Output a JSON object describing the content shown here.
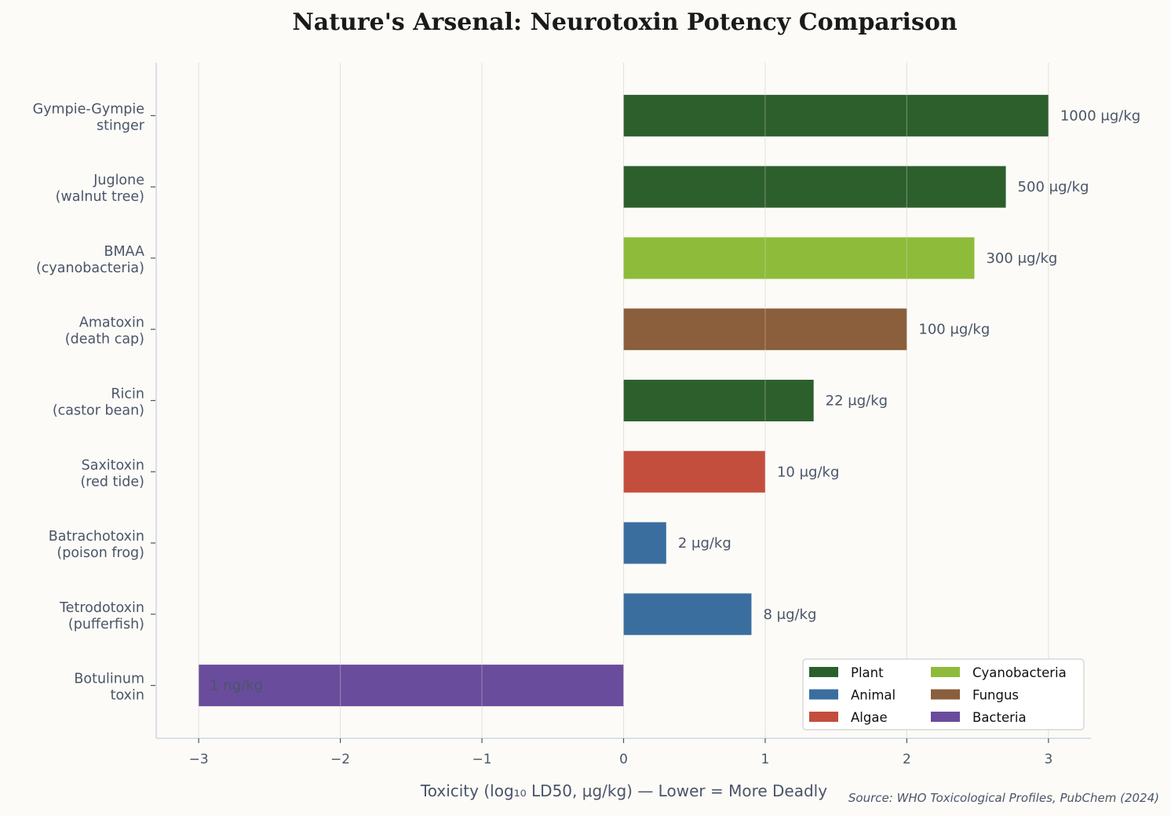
{
  "chart_data": {
    "type": "bar",
    "orientation": "horizontal",
    "title": "Nature's Arsenal: Neurotoxin Potency Comparison",
    "xlabel": "Toxicity (log₁₀ LD50, μg/kg) — Lower = More Deadly",
    "ylabel": "",
    "xlim": [
      -3.3,
      3.3
    ],
    "xticks": [
      -3,
      -2,
      -1,
      0,
      1,
      2,
      3
    ],
    "xtick_labels": [
      "−3",
      "−2",
      "−1",
      "0",
      "1",
      "2",
      "3"
    ],
    "grid": "vertical",
    "categories": [
      [
        "Gympie-Gympie",
        "stinger"
      ],
      [
        "Juglone",
        "(walnut tree)"
      ],
      [
        "BMAA",
        "(cyanobacteria)"
      ],
      [
        "Amatoxin",
        "(death cap)"
      ],
      [
        "Ricin",
        "(castor bean)"
      ],
      [
        "Saxitoxin",
        "(red tide)"
      ],
      [
        "Batrachotoxin",
        "(poison frog)"
      ],
      [
        "Tetrodotoxin",
        "(pufferfish)"
      ],
      [
        "Botulinum",
        "toxin"
      ]
    ],
    "values": [
      3.0,
      2.699,
      2.477,
      2.0,
      1.342,
      1.0,
      0.301,
      0.903,
      -3.0
    ],
    "groups": [
      "Plant",
      "Plant",
      "Cyanobacteria",
      "Fungus",
      "Plant",
      "Algae",
      "Animal",
      "Animal",
      "Bacteria"
    ],
    "data_labels": [
      "1000 μg/kg",
      "500 μg/kg",
      "300 μg/kg",
      "100 μg/kg",
      "22 μg/kg",
      "10 μg/kg",
      "2 μg/kg",
      "8 μg/kg",
      "1 ng/kg"
    ],
    "legend": {
      "placement": "lower-right",
      "entries": [
        "Plant",
        "Animal",
        "Algae",
        "Cyanobacteria",
        "Fungus",
        "Bacteria"
      ]
    },
    "colors": {
      "Plant": "#2d5f2d",
      "Animal": "#3a6e9f",
      "Algae": "#c44e3d",
      "Cyanobacteria": "#8fbb3a",
      "Fungus": "#8b5e3c",
      "Bacteria": "#6a4c9c"
    },
    "source": "Source: WHO Toxicological Profiles, PubChem (2024)"
  }
}
